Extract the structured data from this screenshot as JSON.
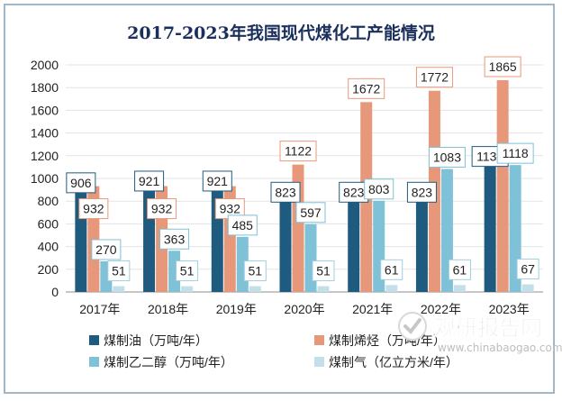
{
  "chart_data": {
    "type": "bar",
    "title": "2017-2023年我国现代煤化工产能情况",
    "categories": [
      "2017年",
      "2018年",
      "2019年",
      "2020年",
      "2021年",
      "2022年",
      "2023年"
    ],
    "series": [
      {
        "name": "煤制油（万吨/年）",
        "color": "#1f5b7e",
        "values": [
          906,
          921,
          921,
          823,
          823,
          823,
          1138
        ]
      },
      {
        "name": "煤制烯烃（万吨/年）",
        "color": "#e8987a",
        "values": [
          932,
          932,
          932,
          1122,
          1672,
          1772,
          1865
        ]
      },
      {
        "name": "煤制乙二醇（万吨/年）",
        "color": "#7fc1d6",
        "values": [
          270,
          363,
          485,
          597,
          803,
          1083,
          1118
        ]
      },
      {
        "name": "煤制气（亿立方米/年）",
        "color": "#c3e0ea",
        "values": [
          51,
          51,
          51,
          51,
          61,
          61,
          67
        ]
      }
    ],
    "ylim": [
      0,
      2000
    ],
    "yticks": [
      0,
      200,
      400,
      600,
      800,
      1000,
      1200,
      1400,
      1600,
      1800,
      2000
    ],
    "legend_position": "bottom",
    "data_labels": true
  },
  "watermark": {
    "brand_text": "观研报告网",
    "url_text": "www.chinabaogao.com"
  }
}
